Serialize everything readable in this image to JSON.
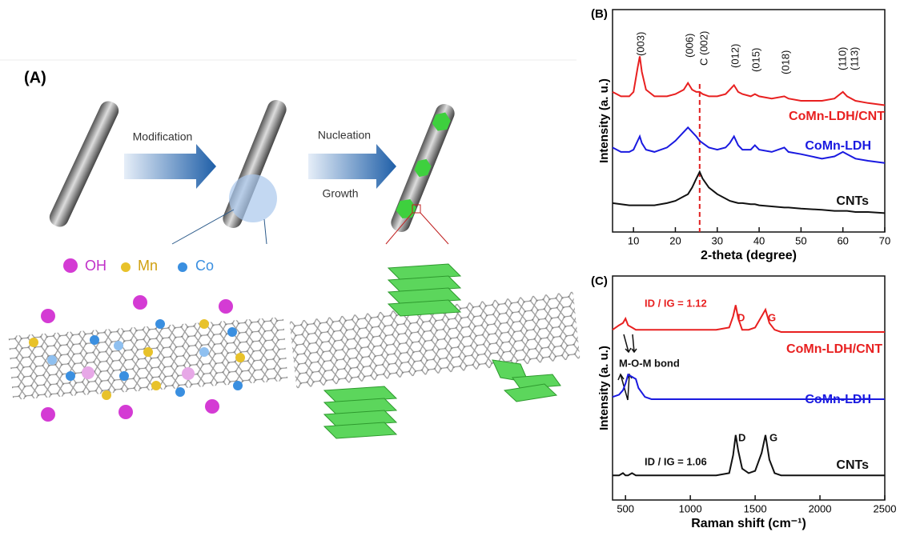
{
  "panel_a": {
    "label": "(A)",
    "arrow_1": "Modification",
    "arrow_2_top": "Nucleation",
    "arrow_2_bottom": "Growth",
    "legend": [
      "OH",
      "Mn",
      "Co"
    ]
  },
  "chart_data": [
    {
      "type": "line",
      "panel_label": "(B)",
      "xlabel": "2-theta (degree)",
      "ylabel": "Intensity (a. u.)",
      "xlim": [
        5,
        70
      ],
      "xticks": [
        10,
        20,
        30,
        40,
        50,
        60,
        70
      ],
      "ylim": [
        0,
        100
      ],
      "x": [
        5,
        7,
        9,
        10,
        11,
        11.5,
        12,
        13,
        15,
        18,
        20,
        22,
        23,
        24,
        25,
        25.8,
        26.5,
        28,
        30,
        32,
        33,
        34,
        35,
        36,
        38,
        39,
        40,
        43,
        46,
        47,
        50,
        55,
        58,
        60,
        61,
        63,
        66,
        70
      ],
      "series": [
        {
          "name": "CoMn-LDH/CNT",
          "color": "#e82020",
          "values": [
            63,
            61,
            61,
            63,
            74,
            79,
            72,
            64,
            61,
            61,
            62,
            64,
            67,
            64,
            63,
            63,
            62,
            61,
            61,
            62,
            64,
            66,
            63,
            62,
            61,
            62,
            61,
            60,
            61,
            60,
            59,
            59,
            60,
            63,
            61,
            59,
            58,
            57
          ]
        },
        {
          "name": "CoMn-LDH",
          "color": "#1a1ae0",
          "values": [
            38,
            36,
            36,
            37,
            41,
            43,
            40,
            37,
            36,
            38,
            41,
            45,
            47,
            45,
            43,
            41,
            40,
            38,
            37,
            38,
            40,
            43,
            39,
            37,
            37,
            39,
            37,
            36,
            38,
            36,
            35,
            33,
            34,
            36,
            35,
            33,
            32,
            31
          ]
        },
        {
          "name": "CNTs",
          "color": "#111111",
          "values": [
            13,
            12.5,
            12,
            12,
            12,
            12,
            12,
            12,
            12,
            13,
            14,
            16,
            17,
            20,
            24,
            27,
            24,
            20,
            17,
            15,
            14,
            13.5,
            13,
            13,
            12.5,
            12.5,
            12,
            11.5,
            11,
            11,
            10.5,
            10,
            9.5,
            9.5,
            9.5,
            9,
            9,
            8.5
          ]
        }
      ],
      "reference_line": {
        "x": 25.8,
        "color": "#e02020"
      },
      "annotations": [
        "(003)",
        "(006)",
        "C (002)",
        "(012)",
        "(015)",
        "(018)",
        "(110)",
        "(113)"
      ]
    },
    {
      "type": "line",
      "panel_label": "(C)",
      "xlabel": "Raman shift (cm⁻¹)",
      "ylabel": "Intensity (a. u.)",
      "xlim": [
        400,
        2500
      ],
      "xticks": [
        500,
        1000,
        1500,
        2000,
        2500
      ],
      "ylim": [
        0,
        100
      ],
      "x": [
        400,
        450,
        480,
        500,
        520,
        550,
        580,
        600,
        650,
        700,
        800,
        900,
        1000,
        1100,
        1200,
        1300,
        1330,
        1350,
        1370,
        1400,
        1450,
        1500,
        1550,
        1580,
        1610,
        1650,
        1700,
        1800,
        2000,
        2200,
        2400,
        2500
      ],
      "series": [
        {
          "name": "CoMn-LDH/CNT",
          "color": "#e82020",
          "values": [
            76,
            78,
            79,
            81,
            78,
            77,
            76,
            76,
            76,
            76,
            76,
            76,
            76,
            76,
            76,
            77,
            82,
            87,
            81,
            76,
            76,
            77,
            82,
            85,
            79,
            76,
            75,
            75,
            75,
            75,
            75,
            75
          ]
        },
        {
          "name": "CoMn-LDH",
          "color": "#1a1ae0",
          "values": [
            46,
            47,
            49,
            52,
            56,
            55,
            54,
            50,
            46,
            45,
            45,
            45,
            45,
            45,
            45,
            45,
            45,
            45,
            45,
            45,
            45,
            45,
            45,
            45,
            45,
            45,
            45,
            45,
            45,
            45,
            45,
            45
          ]
        },
        {
          "name": "CNTs",
          "color": "#111111",
          "values": [
            11,
            11,
            12,
            11,
            11,
            12,
            11,
            11,
            11,
            11,
            11,
            11,
            11,
            11,
            11,
            12,
            20,
            29,
            22,
            14,
            12,
            13,
            21,
            29,
            18,
            12,
            11,
            11,
            11,
            11,
            11,
            11
          ]
        }
      ],
      "annotations": [
        "D",
        "G",
        "ID / IG = 1.12",
        "M-O-M bond",
        "D",
        "G",
        "ID / IG = 1.06"
      ]
    }
  ]
}
